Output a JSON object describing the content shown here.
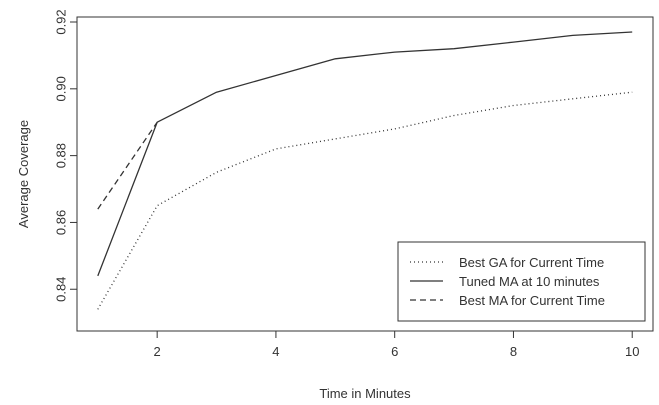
{
  "chart_data": {
    "type": "line",
    "title": "",
    "xlabel": "Time in Minutes",
    "ylabel": "Average Coverage",
    "xlim": [
      0.65,
      10.35
    ],
    "ylim": [
      0.8275,
      0.9215
    ],
    "x_ticks": [
      2,
      4,
      6,
      8,
      10
    ],
    "x_tick_labels": [
      "2",
      "4",
      "6",
      "8",
      "10"
    ],
    "y_ticks": [
      0.84,
      0.86,
      0.88,
      0.9,
      0.92
    ],
    "y_tick_labels": [
      "0.84",
      "0.86",
      "0.88",
      "0.90",
      "0.92"
    ],
    "grid": false,
    "legend_position": "bottom-right",
    "series": [
      {
        "name": "Best GA for Current Time",
        "linestyle": "dotted",
        "color": "#333333",
        "x": [
          1,
          2,
          3,
          4,
          5,
          6,
          7,
          8,
          9,
          10
        ],
        "values": [
          0.834,
          0.865,
          0.875,
          0.882,
          0.885,
          0.888,
          0.892,
          0.895,
          0.897,
          0.899
        ]
      },
      {
        "name": "Tuned MA at 10 minutes",
        "linestyle": "solid",
        "color": "#333333",
        "x": [
          1,
          2,
          3,
          4,
          5,
          6,
          7,
          8,
          9,
          10
        ],
        "values": [
          0.844,
          0.89,
          0.899,
          0.904,
          0.909,
          0.911,
          0.912,
          0.914,
          0.916,
          0.917
        ]
      },
      {
        "name": "Best MA for Current Time",
        "linestyle": "dashed",
        "color": "#333333",
        "x": [
          1,
          2
        ],
        "values": [
          0.864,
          0.89
        ]
      }
    ]
  }
}
